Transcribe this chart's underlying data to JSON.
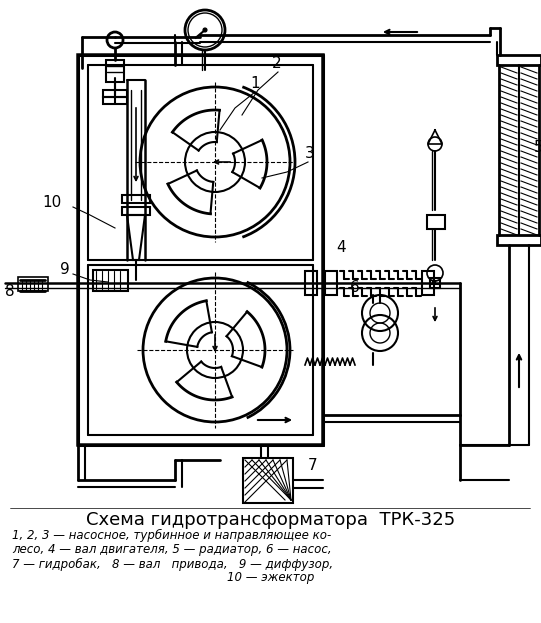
{
  "title": "Схема гидротрансформатора  ТРК-325",
  "line1": "1, 2, 3 — насосное, турбинное и направляющее ко-",
  "line2": "лесо, 4 — вал двигателя, 5 — радиатор, 6 — насос,",
  "line3": "7 — гидробак,   8 — вал   привода,   9 — диффузор,",
  "line4": "10 — эжектор",
  "bg": "#ffffff",
  "lc": "#000000",
  "fig_w": 5.41,
  "fig_h": 6.23,
  "dpi": 100
}
